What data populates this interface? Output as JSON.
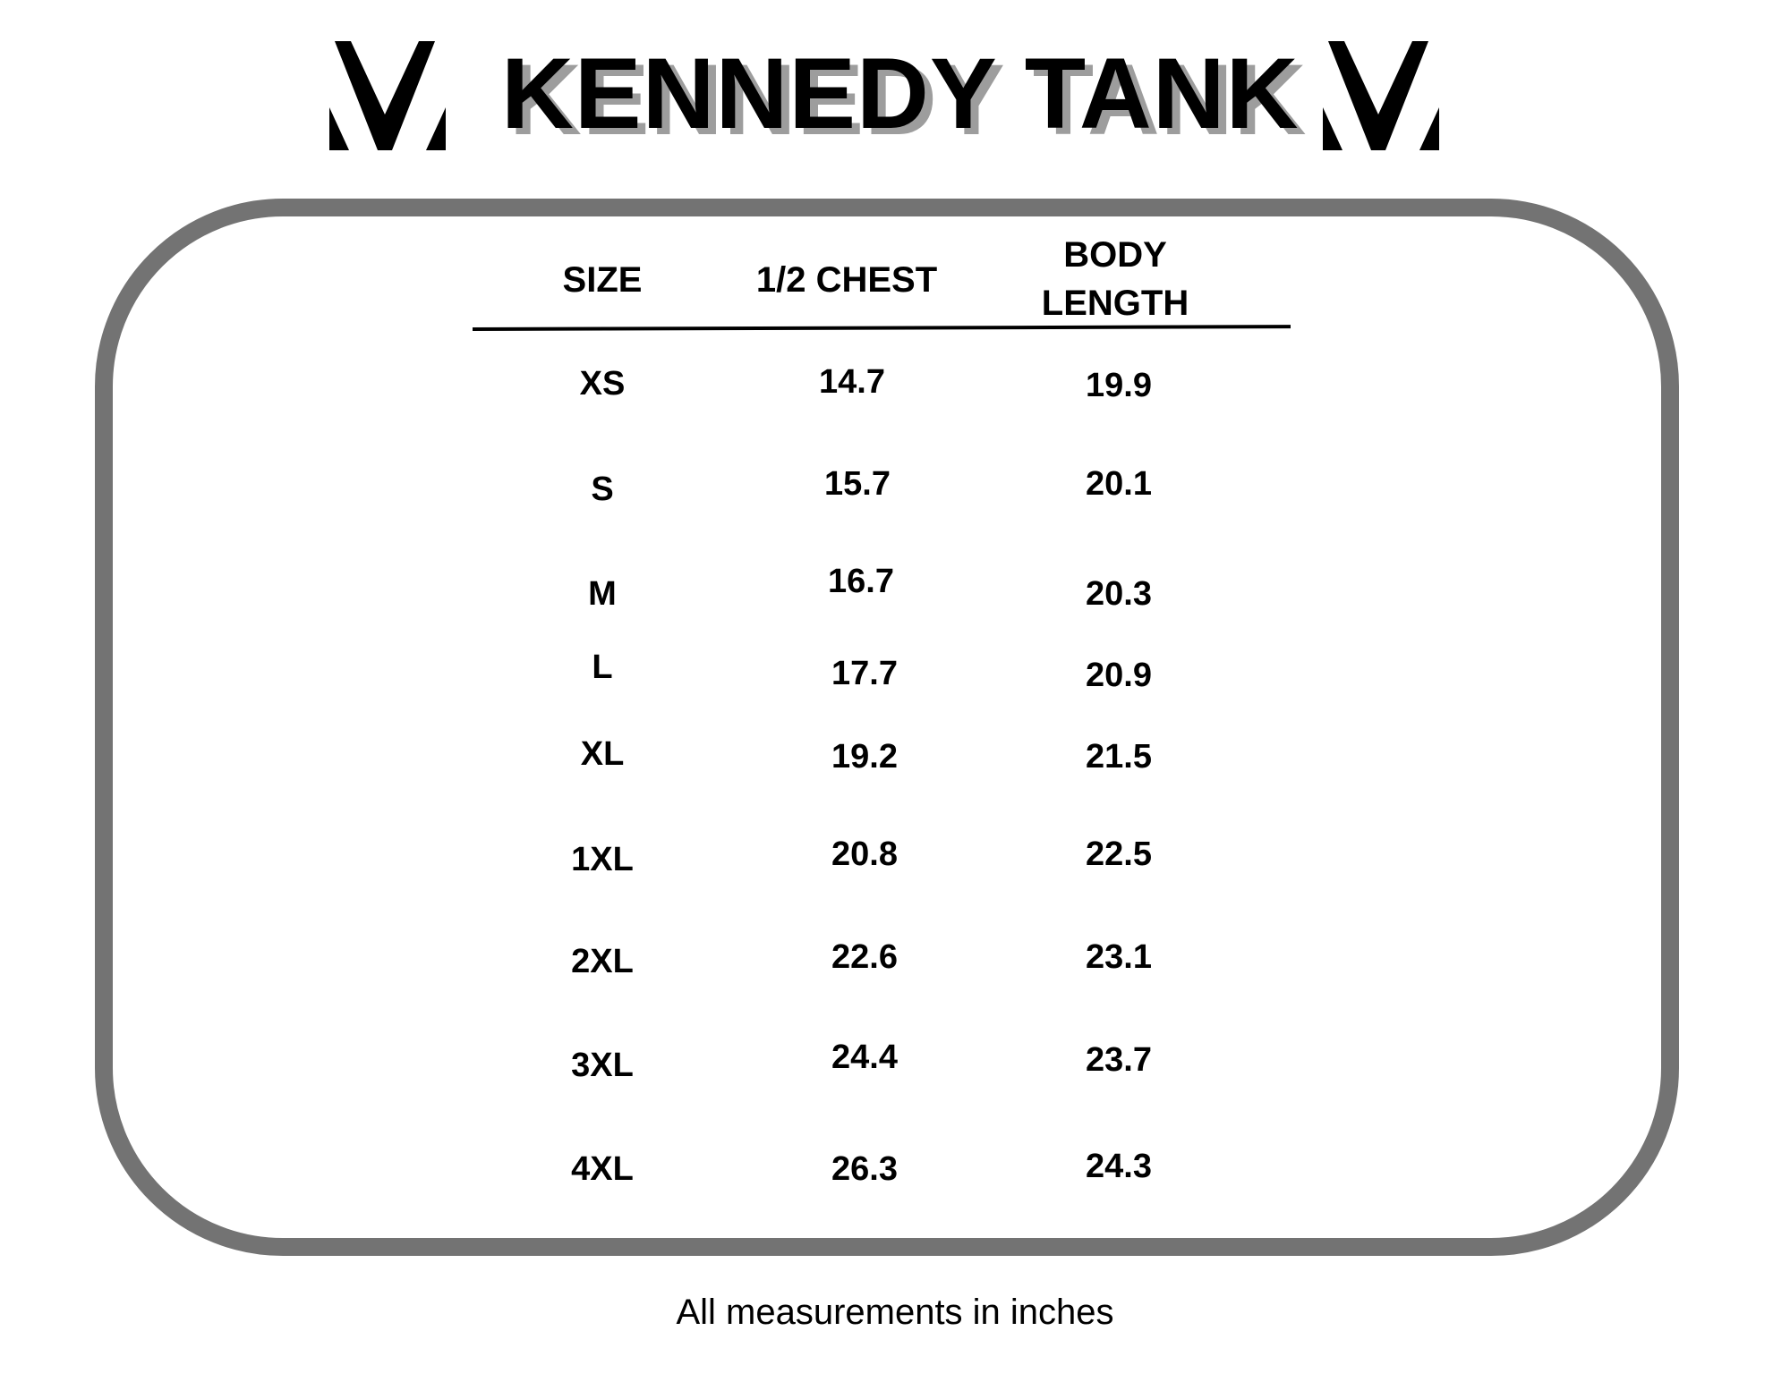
{
  "header": {
    "title": "KENNEDY TANK",
    "logo_icon": "double-chevron-v-logo-icon"
  },
  "table": {
    "columns": [
      "SIZE",
      "1/2 CHEST",
      "BODY LENGTH"
    ],
    "body_length_lines": [
      "BODY",
      "LENGTH"
    ],
    "rows": [
      {
        "size": "XS",
        "chest": "14.7",
        "body_length": "19.9"
      },
      {
        "size": "S",
        "chest": "15.7",
        "body_length": "20.1"
      },
      {
        "size": "M",
        "chest": "16.7",
        "body_length": "20.3"
      },
      {
        "size": "L",
        "chest": "17.7",
        "body_length": "20.9"
      },
      {
        "size": "XL",
        "chest": "19.2",
        "body_length": "21.5"
      },
      {
        "size": "1XL",
        "chest": "20.8",
        "body_length": "22.5"
      },
      {
        "size": "2XL",
        "chest": "22.6",
        "body_length": "23.1"
      },
      {
        "size": "3XL",
        "chest": "24.4",
        "body_length": "23.7"
      },
      {
        "size": "4XL",
        "chest": "26.3",
        "body_length": "24.3"
      }
    ]
  },
  "footer": {
    "note": "All measurements in inches"
  },
  "colors": {
    "frame_border": "#737373",
    "title_shadow": "#9d9d9d",
    "text": "#000000",
    "background": "#ffffff"
  }
}
